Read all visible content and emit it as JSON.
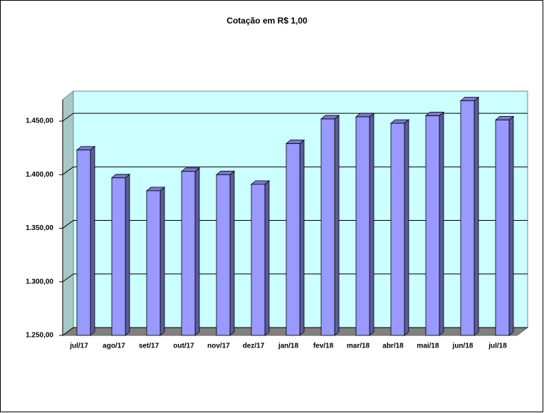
{
  "chart_data": {
    "type": "bar3d",
    "title": "Cotação em R$ 1,00",
    "categories": [
      "jul/17",
      "ago/17",
      "set/17",
      "out/17",
      "nov/17",
      "dez/17",
      "jan/18",
      "fev/18",
      "mar/18",
      "abr/18",
      "mai/18",
      "jun/18",
      "jul/18"
    ],
    "values": [
      1423,
      1397,
      1385,
      1403,
      1400,
      1391,
      1429,
      1452,
      1454,
      1448,
      1455,
      1469,
      1451
    ],
    "color": "#9999ff",
    "ylim": [
      1250,
      1470
    ],
    "yticks": [
      {
        "value": 1250,
        "label": "1.250,00"
      },
      {
        "value": 1300,
        "label": "1.300,00"
      },
      {
        "value": 1350,
        "label": "1.350,00"
      },
      {
        "value": 1400,
        "label": "1.400,00"
      },
      {
        "value": 1450,
        "label": "1.450,00"
      }
    ],
    "grid": true
  }
}
